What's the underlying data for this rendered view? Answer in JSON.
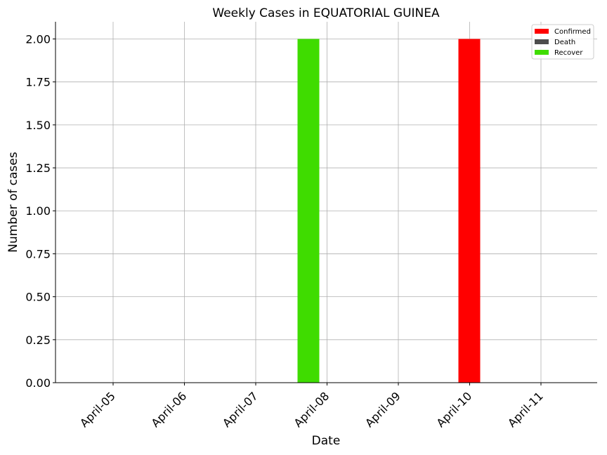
{
  "chart_data": {
    "type": "bar",
    "title": "Weekly Cases in EQUATORIAL GUINEA",
    "xlabel": "Date",
    "ylabel": "Number of cases",
    "categories": [
      "April-05",
      "April-06",
      "April-07",
      "April-08",
      "April-09",
      "April-10",
      "April-11"
    ],
    "series": [
      {
        "name": "Confirmed",
        "color": "#ff0000",
        "values": [
          0,
          0,
          0,
          0,
          0,
          2,
          0
        ]
      },
      {
        "name": "Death",
        "color": "#4d4d4d",
        "values": [
          0,
          0,
          0,
          0,
          0,
          0,
          0
        ]
      },
      {
        "name": "Recover",
        "color": "#3fdc00",
        "values": [
          0,
          0,
          0,
          2,
          0,
          0,
          0
        ]
      }
    ],
    "ylim": [
      0,
      2.1
    ],
    "yticks": [
      "0.00",
      "0.25",
      "0.50",
      "0.75",
      "1.00",
      "1.25",
      "1.50",
      "1.75",
      "2.00"
    ],
    "grid": true,
    "legend_position": "top-right"
  }
}
